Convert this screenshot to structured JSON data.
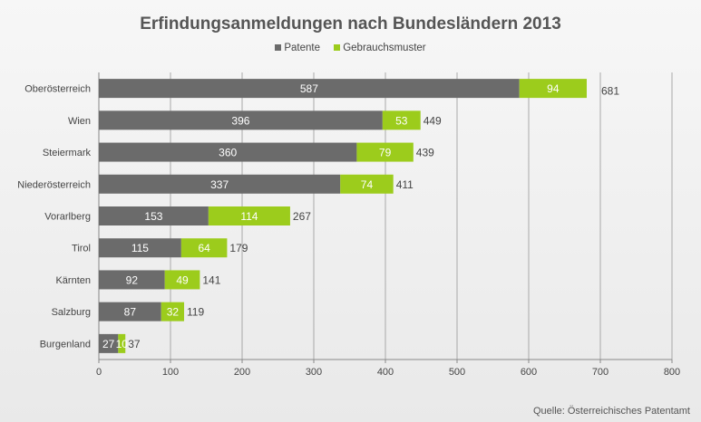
{
  "chart_data": {
    "type": "bar",
    "orientation": "horizontal",
    "stacked": true,
    "title": "Erfindungsanmeldungen nach Bundesländern 2013",
    "categories": [
      "Oberösterreich",
      "Wien",
      "Steiermark",
      "Niederösterreich",
      "Vorarlberg",
      "Tirol",
      "Kärnten",
      "Salzburg",
      "Burgenland"
    ],
    "series": [
      {
        "name": "Patente",
        "color": "#6b6b6b",
        "values": [
          587,
          396,
          360,
          337,
          153,
          115,
          92,
          87,
          27
        ]
      },
      {
        "name": "Gebrauchsmuster",
        "color": "#9ccc1c",
        "values": [
          94,
          53,
          79,
          74,
          114,
          64,
          49,
          32,
          10
        ]
      }
    ],
    "totals": [
      681,
      449,
      439,
      411,
      267,
      179,
      141,
      119,
      37
    ],
    "xlim": [
      0,
      800
    ],
    "xticks": [
      0,
      100,
      200,
      300,
      400,
      500,
      600,
      700,
      800
    ],
    "grid": "vertical",
    "legend_position": "top",
    "source": "Quelle: Österreichisches Patentamt"
  }
}
